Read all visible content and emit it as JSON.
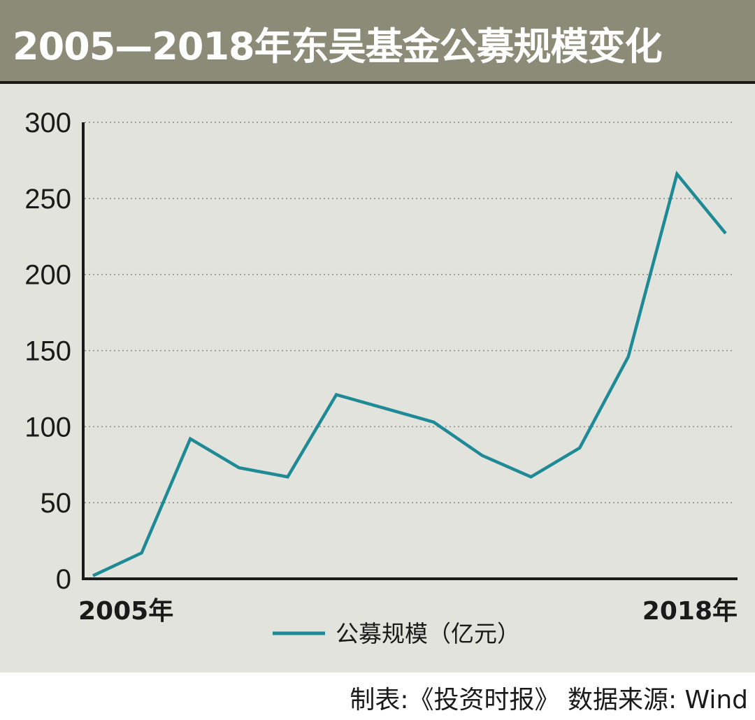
{
  "header": {
    "title": "2005—2018年东吴基金公募规模变化"
  },
  "chart_data": {
    "type": "line",
    "x": [
      "2005",
      "2006",
      "2007",
      "2008",
      "2009",
      "2010",
      "2011",
      "2012",
      "2013",
      "2014",
      "2015",
      "2016",
      "2017",
      "2018"
    ],
    "x_tick_labels": [
      "2005年",
      "2018年"
    ],
    "series": [
      {
        "name": "公募规模（亿元）",
        "values": [
          2,
          17,
          92,
          73,
          67,
          121,
          112,
          103,
          81,
          67,
          86,
          146,
          266,
          227
        ],
        "color": "#1e8a96"
      }
    ],
    "ylim": [
      0,
      300
    ],
    "yticks": [
      "0",
      "50",
      "100",
      "150",
      "200",
      "250",
      "300"
    ],
    "grid": "horizontal dotted",
    "legend": "bottom-center"
  },
  "footer": {
    "source": "制表:《投资时报》 数据来源: Wind"
  }
}
